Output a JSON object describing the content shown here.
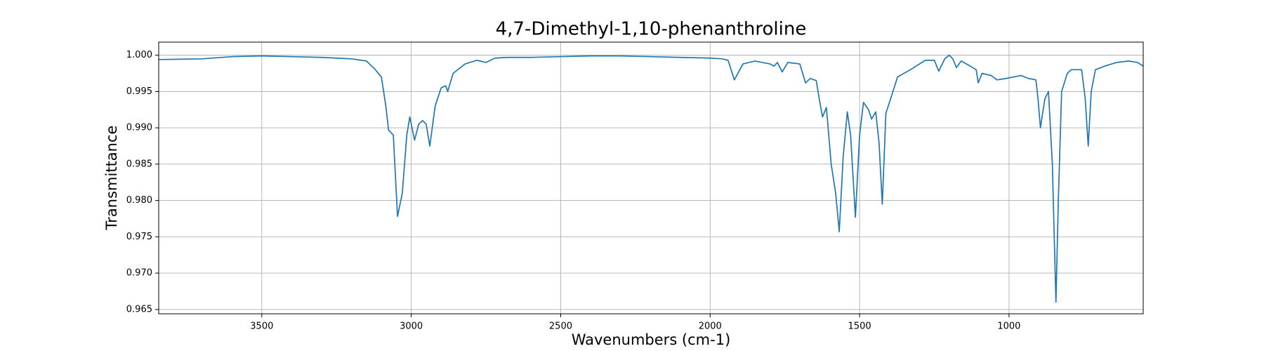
{
  "chart_data": {
    "type": "line",
    "title": "4,7-Dimethyl-1,10-phenanthroline",
    "xlabel": "Wavenumbers (cm-1)",
    "ylabel": "Transmittance",
    "x": [
      3845,
      3700,
      3600,
      3500,
      3400,
      3300,
      3200,
      3150,
      3120,
      3100,
      3085,
      3076,
      3060,
      3046,
      3030,
      3015,
      3005,
      2989,
      2975,
      2962,
      2950,
      2938,
      2920,
      2900,
      2885,
      2878,
      2860,
      2820,
      2780,
      2750,
      2720,
      2680,
      2600,
      2500,
      2400,
      2300,
      2200,
      2100,
      2000,
      1960,
      1940,
      1919,
      1890,
      1850,
      1800,
      1786,
      1775,
      1759,
      1740,
      1700,
      1681,
      1665,
      1645,
      1635,
      1624,
      1611,
      1595,
      1580,
      1568,
      1555,
      1541,
      1530,
      1514,
      1500,
      1487,
      1470,
      1460,
      1446,
      1435,
      1424,
      1412,
      1400,
      1373,
      1330,
      1280,
      1250,
      1235,
      1215,
      1200,
      1188,
      1176,
      1160,
      1130,
      1110,
      1103,
      1090,
      1060,
      1040,
      1010,
      960,
      935,
      910,
      903,
      895,
      880,
      868,
      855,
      843,
      835,
      824,
      805,
      792,
      770,
      757,
      745,
      735,
      725,
      711,
      680,
      640,
      600,
      570,
      551
    ],
    "series": [
      {
        "name": "Transmittance",
        "color": "#1f77b4",
        "values": [
          0.9994,
          0.9995,
          0.9998,
          0.9999,
          0.9998,
          0.9997,
          0.9995,
          0.9992,
          0.998,
          0.997,
          0.993,
          0.9897,
          0.989,
          0.9778,
          0.981,
          0.989,
          0.9915,
          0.9883,
          0.9905,
          0.991,
          0.9905,
          0.9875,
          0.993,
          0.9955,
          0.9958,
          0.995,
          0.9975,
          0.9988,
          0.9993,
          0.999,
          0.9996,
          0.9997,
          0.9997,
          0.9998,
          0.9999,
          0.9999,
          0.9998,
          0.9997,
          0.9996,
          0.9995,
          0.9993,
          0.9966,
          0.9988,
          0.9992,
          0.9988,
          0.9985,
          0.999,
          0.9977,
          0.999,
          0.9988,
          0.9962,
          0.9968,
          0.9965,
          0.994,
          0.9915,
          0.9928,
          0.985,
          0.981,
          0.9757,
          0.986,
          0.9922,
          0.989,
          0.9777,
          0.989,
          0.9935,
          0.9925,
          0.9912,
          0.9922,
          0.988,
          0.9795,
          0.992,
          0.9935,
          0.997,
          0.998,
          0.9993,
          0.9993,
          0.9978,
          0.9995,
          1.0,
          0.9995,
          0.9983,
          0.9992,
          0.9985,
          0.998,
          0.9962,
          0.9975,
          0.9972,
          0.9966,
          0.9968,
          0.9972,
          0.9968,
          0.9966,
          0.994,
          0.99,
          0.994,
          0.995,
          0.985,
          0.966,
          0.98,
          0.995,
          0.9975,
          0.998,
          0.998,
          0.998,
          0.994,
          0.9875,
          0.995,
          0.998,
          0.9985,
          0.999,
          0.9992,
          0.999,
          0.9985
        ]
      }
    ],
    "xlim": [
      3845,
      551
    ],
    "ylim": [
      0.9644,
      1.0018
    ],
    "xticks": [
      3500,
      3000,
      2500,
      2000,
      1500,
      1000
    ],
    "yticks": [
      {
        "value": 1.0,
        "label": "1.000"
      },
      0.995,
      {
        "value": 0.99,
        "label": "0.990"
      },
      0.985,
      {
        "value": 0.98,
        "label": "0.980"
      },
      0.975,
      {
        "value": 0.97,
        "label": "0.970"
      },
      0.965
    ],
    "grid": true
  }
}
